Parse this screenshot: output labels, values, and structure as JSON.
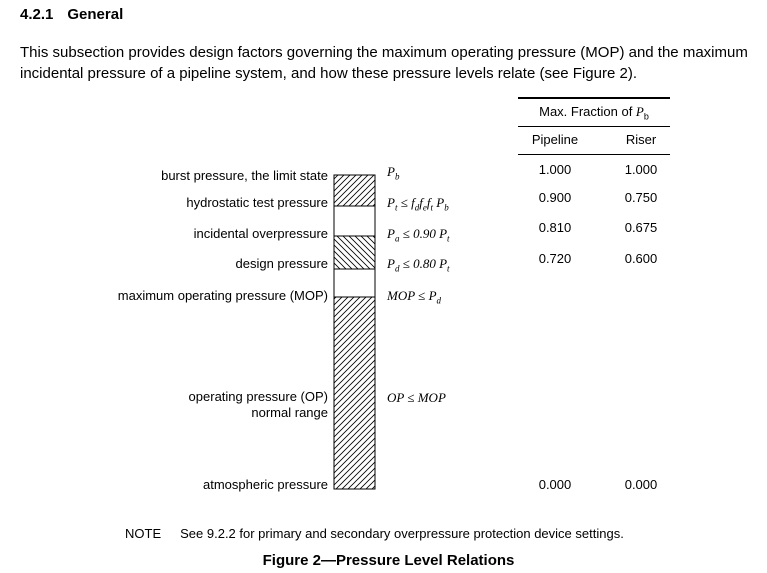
{
  "section": {
    "number": "4.2.1",
    "title": "General",
    "intro_line1": "This subsection provides design factors governing the maximum operating pressure (MOP) and the maximum",
    "intro_line2": "incidental pressure of a pipeline system, and how these pressure levels relate (see Figure 2)."
  },
  "figure": {
    "labels": {
      "burst": "burst pressure, the limit state",
      "hydrotest": "hydrostatic test pressure",
      "incidental": "incidental overpressure",
      "design": "design pressure",
      "mop": "maximum operating pressure (MOP)",
      "op_line1": "operating pressure (OP)",
      "op_line2": "normal range",
      "atmospheric": "atmospheric pressure"
    },
    "formulas": {
      "pb_base": "P",
      "pb_sub": "b",
      "pt_base": "P",
      "pt_sub": "t",
      "pt_rel": " ≤ ",
      "fd": "f",
      "fd_sub": "d",
      "fe": "f",
      "fe_sub": "e",
      "ft": "f",
      "ft_sub": "t",
      "pt_rhs_base": "P",
      "pt_rhs_sub": "b",
      "pa_base": "P",
      "pa_sub": "a",
      "pa_rel": " ≤ 0.90 ",
      "pa_rhs_base": "P",
      "pa_rhs_sub": "t",
      "pd_base": "P",
      "pd_sub": "d",
      "pd_rel": " ≤ 0.80 ",
      "pd_rhs_base": "P",
      "pd_rhs_sub": "t",
      "mop_text": "MOP ≤ ",
      "mop_rhs_base": "P",
      "mop_rhs_sub": "d",
      "op_text": "OP ≤ MOP"
    },
    "table": {
      "header_base": "Max. Fraction of ",
      "header_p": "P",
      "header_sub": "b",
      "col_pipeline": "Pipeline",
      "col_riser": "Riser",
      "rows": [
        {
          "pipeline": "1.000",
          "riser": "1.000"
        },
        {
          "pipeline": "0.900",
          "riser": "0.750"
        },
        {
          "pipeline": "0.810",
          "riser": "0.675"
        },
        {
          "pipeline": "0.720",
          "riser": "0.600"
        },
        {
          "pipeline": "0.000",
          "riser": "0.000"
        }
      ]
    }
  },
  "note": {
    "label": "NOTE",
    "text": "See 9.2.2 for primary and secondary overpressure protection device settings."
  },
  "caption": "Figure 2—Pressure Level Relations"
}
